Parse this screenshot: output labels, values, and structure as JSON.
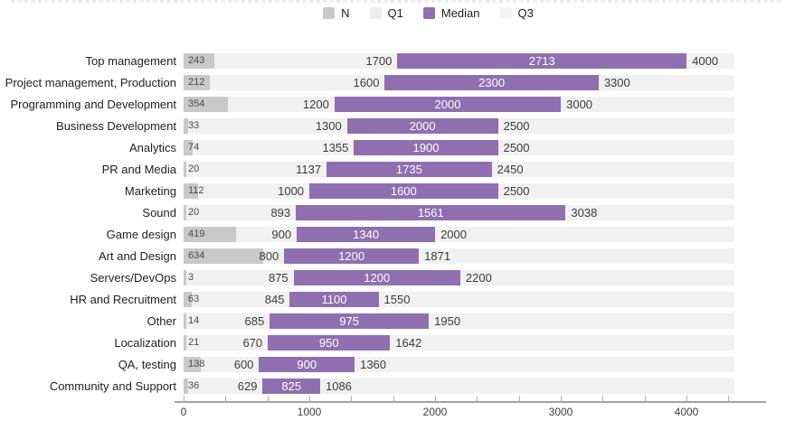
{
  "legend": {
    "items": [
      {
        "label": "N",
        "color": "#c9c9c9"
      },
      {
        "label": "Q1",
        "color": "#ececec"
      },
      {
        "label": "Median",
        "color": "#8f6fb0"
      },
      {
        "label": "Q3",
        "color": "#f4f4f4"
      }
    ]
  },
  "colors": {
    "median_bar": "#8f6fb0",
    "n_bar": "#c9c9c9",
    "row_track": "#f1f1f1",
    "axis_line": "#a2a2a2"
  },
  "chart_data": {
    "type": "bar",
    "orientation": "horizontal",
    "legend_position": "top",
    "xlabel": "",
    "ylabel": "",
    "xlim": [
      0,
      4380
    ],
    "x_ticks": [
      0,
      1000,
      2000,
      3000,
      4000
    ],
    "grid": false,
    "categories": [
      "Top management",
      "Project management, Production",
      "Programming and Development",
      "Business Development",
      "Analytics",
      "PR and Media",
      "Marketing",
      "Sound",
      "Game design",
      "Art and Design",
      "Servers/DevOps",
      "HR and Recruitment",
      "Other",
      "Localization",
      "QA, testing",
      "Community and Support"
    ],
    "series": [
      {
        "name": "N",
        "values": [
          243,
          212,
          354,
          33,
          74,
          20,
          112,
          20,
          419,
          634,
          3,
          63,
          14,
          21,
          138,
          36
        ]
      },
      {
        "name": "Q1",
        "values": [
          1700,
          1600,
          1200,
          1300,
          1355,
          1137,
          1000,
          893,
          900,
          800,
          875,
          845,
          685,
          670,
          600,
          629
        ]
      },
      {
        "name": "Median",
        "values": [
          2713,
          2300,
          2000,
          2000,
          1900,
          1735,
          1600,
          1561,
          1340,
          1200,
          1200,
          1100,
          975,
          950,
          900,
          825
        ]
      },
      {
        "name": "Q3",
        "values": [
          4000,
          3300,
          3000,
          2500,
          2500,
          2450,
          2500,
          3038,
          2000,
          1871,
          2200,
          1550,
          1950,
          1642,
          1360,
          1086
        ]
      }
    ]
  }
}
